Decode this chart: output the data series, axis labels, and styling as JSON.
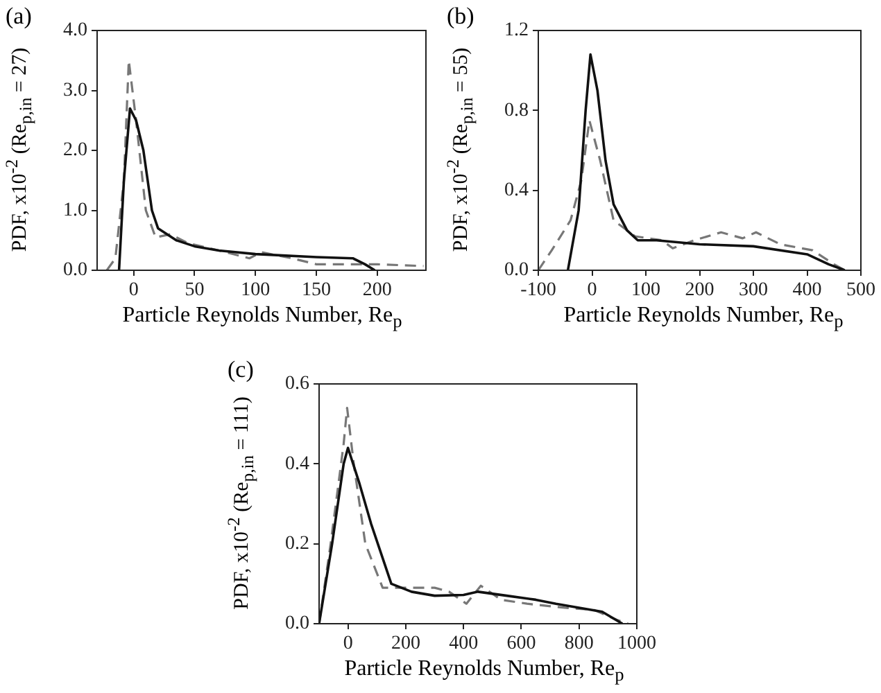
{
  "chart_data": [
    {
      "type": "line",
      "title": "(a)",
      "xlabel": "Particle Reynolds Number, Re$_{p}$",
      "ylabel": "PDF, x10$^{-2}$ (Re$_{p,in}$ = 27)",
      "xlim": [
        -30,
        240
      ],
      "xticks": [
        0,
        50,
        100,
        150,
        200
      ],
      "ylim": [
        0,
        4
      ],
      "yticks": [
        {
          "value": 0,
          "label": "0.0"
        },
        {
          "value": 1,
          "label": "1.0"
        },
        {
          "value": 2,
          "label": "2.0"
        },
        {
          "value": 3,
          "label": "3.0"
        },
        {
          "value": 4,
          "label": "4.0"
        }
      ],
      "grid": false,
      "legend": false,
      "marker": "none",
      "series": [
        {
          "color": "#111111",
          "line_style": "solid",
          "x": [
            -12,
            -8,
            -3,
            2,
            8,
            15,
            20,
            35,
            50,
            70,
            100,
            150,
            180,
            190,
            198
          ],
          "values": [
            0,
            1.5,
            2.7,
            2.5,
            2.0,
            1.0,
            0.7,
            0.5,
            0.4,
            0.33,
            0.27,
            0.22,
            0.2,
            0.1,
            0
          ]
        },
        {
          "color": "#777777",
          "line_style": "dashed",
          "x": [
            -22,
            -15,
            -8,
            -4,
            2,
            10,
            18,
            30,
            45,
            70,
            95,
            105,
            130,
            150,
            200,
            238
          ],
          "values": [
            0,
            0.2,
            1.5,
            3.5,
            2.5,
            1.0,
            0.55,
            0.6,
            0.45,
            0.33,
            0.2,
            0.3,
            0.2,
            0.1,
            0.1,
            0.07
          ]
        }
      ]
    },
    {
      "type": "line",
      "title": "(b)",
      "xlabel": "Particle Reynolds Number, Re$_{p}$",
      "ylabel": "PDF, x10$^{-2}$ (Re$_{p,in}$ = 55)",
      "xlim": [
        -100,
        500
      ],
      "xticks": [
        -100,
        0,
        100,
        200,
        300,
        400,
        500
      ],
      "ylim": [
        0,
        1.2
      ],
      "yticks": [
        {
          "value": 0,
          "label": "0.0"
        },
        0.4,
        0.8,
        1.2
      ],
      "grid": false,
      "legend": false,
      "marker": "none",
      "series": [
        {
          "color": "#111111",
          "line_style": "solid",
          "x": [
            -45,
            -25,
            -12,
            -3,
            10,
            25,
            40,
            65,
            85,
            120,
            200,
            300,
            400,
            440,
            470
          ],
          "values": [
            0,
            0.3,
            0.8,
            1.08,
            0.9,
            0.55,
            0.33,
            0.2,
            0.15,
            0.15,
            0.13,
            0.12,
            0.08,
            0.03,
            0
          ]
        },
        {
          "color": "#777777",
          "line_style": "dashed",
          "x": [
            -100,
            -75,
            -40,
            -20,
            -5,
            15,
            40,
            80,
            130,
            150,
            190,
            240,
            280,
            305,
            350,
            410,
            450,
            470
          ],
          "values": [
            0,
            0.1,
            0.25,
            0.45,
            0.75,
            0.55,
            0.25,
            0.17,
            0.15,
            0.11,
            0.15,
            0.19,
            0.16,
            0.19,
            0.13,
            0.1,
            0.03,
            0
          ]
        }
      ]
    },
    {
      "type": "line",
      "title": "(c)",
      "xlabel": "Particle Reynolds Number, Re$_{p}$",
      "ylabel": "PDF, x10$^{-2}$ (Re$_{p,in}$ = 111)",
      "xlim": [
        -100,
        1000
      ],
      "xticks": [
        0,
        200,
        400,
        600,
        800,
        1000
      ],
      "ylim": [
        0,
        0.6
      ],
      "yticks": [
        {
          "value": 0,
          "label": "0.0"
        },
        0.2,
        0.4,
        0.6
      ],
      "grid": false,
      "legend": false,
      "marker": "none",
      "series": [
        {
          "color": "#111111",
          "line_style": "solid",
          "x": [
            -100,
            -55,
            -15,
            0,
            40,
            80,
            150,
            220,
            300,
            400,
            450,
            550,
            650,
            720,
            800,
            880,
            950
          ],
          "values": [
            0,
            0.2,
            0.4,
            0.44,
            0.35,
            0.25,
            0.1,
            0.08,
            0.07,
            0.072,
            0.08,
            0.07,
            0.06,
            0.05,
            0.04,
            0.03,
            0
          ]
        },
        {
          "color": "#777777",
          "line_style": "dashed",
          "x": [
            -100,
            -60,
            -15,
            -3,
            20,
            60,
            120,
            300,
            350,
            410,
            460,
            530,
            620,
            750,
            850,
            930,
            970
          ],
          "values": [
            0,
            0.2,
            0.45,
            0.54,
            0.4,
            0.2,
            0.09,
            0.09,
            0.08,
            0.05,
            0.095,
            0.06,
            0.05,
            0.04,
            0.035,
            0.01,
            0
          ]
        }
      ]
    }
  ]
}
